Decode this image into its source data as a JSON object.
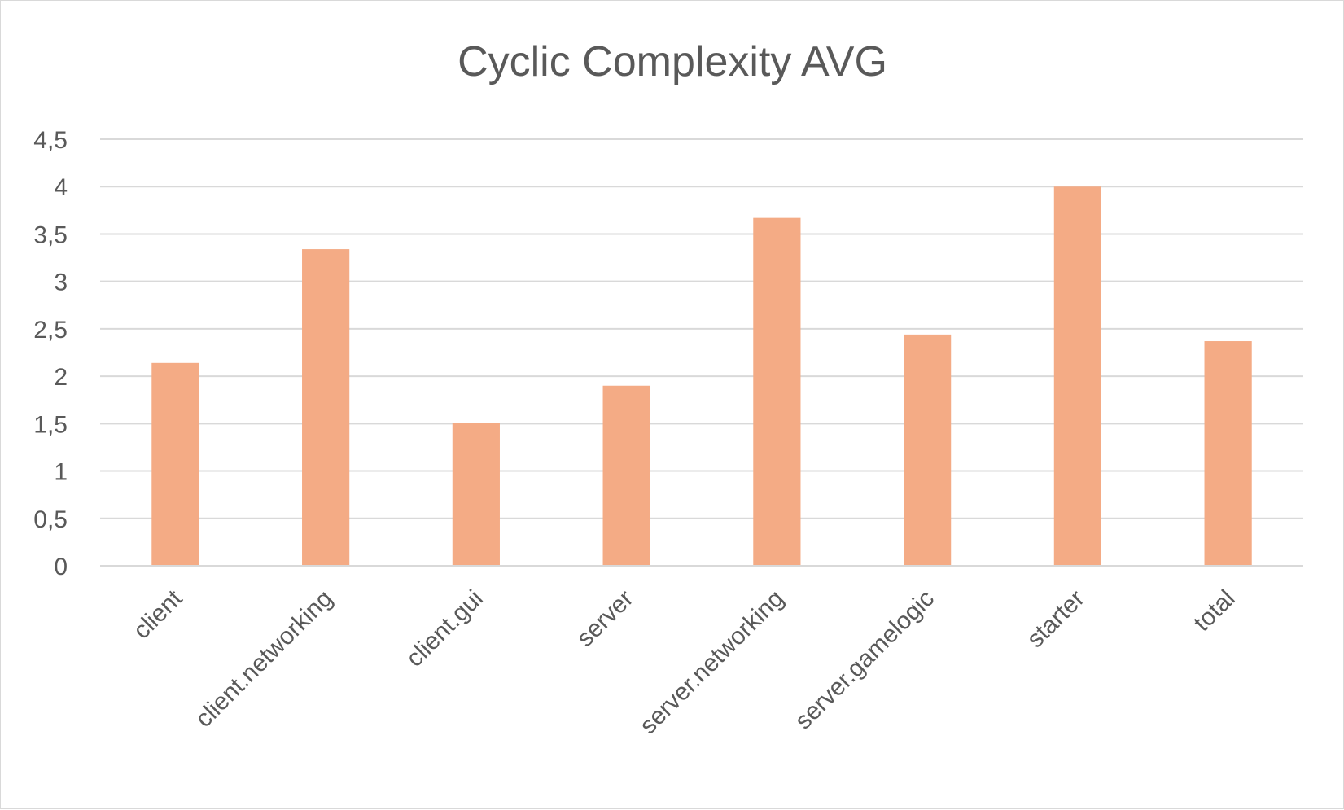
{
  "chart_data": {
    "type": "bar",
    "title": "Cyclic Complexity AVG",
    "xlabel": "",
    "ylabel": "",
    "categories": [
      "client",
      "client.networking",
      "client.gui",
      "server",
      "server.networking",
      "server.gamelogic",
      "starter",
      "total"
    ],
    "values": [
      2.14,
      3.34,
      1.51,
      1.9,
      3.67,
      2.44,
      4.0,
      2.37
    ],
    "ylim": [
      0,
      4.5
    ],
    "yticks": [
      "0",
      "0,5",
      "1",
      "1,5",
      "2",
      "2,5",
      "3",
      "3,5",
      "4",
      "4,5"
    ],
    "grid": true,
    "legend": "none",
    "bar_color": "#f4ab85"
  }
}
